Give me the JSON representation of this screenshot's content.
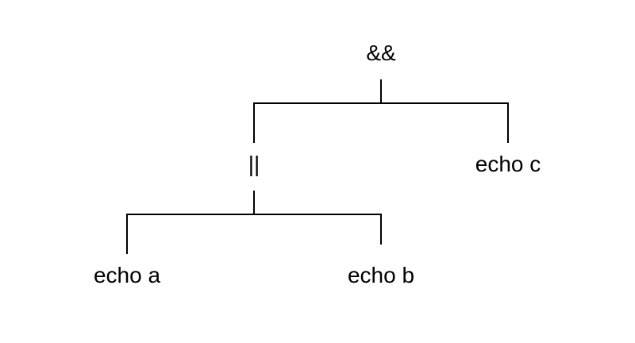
{
  "diagram": {
    "root": {
      "label": "&&"
    },
    "left_child": {
      "label": "||"
    },
    "right_child": {
      "label": "echo c"
    },
    "left_left": {
      "label": "echo a"
    },
    "left_right": {
      "label": "echo b"
    }
  }
}
